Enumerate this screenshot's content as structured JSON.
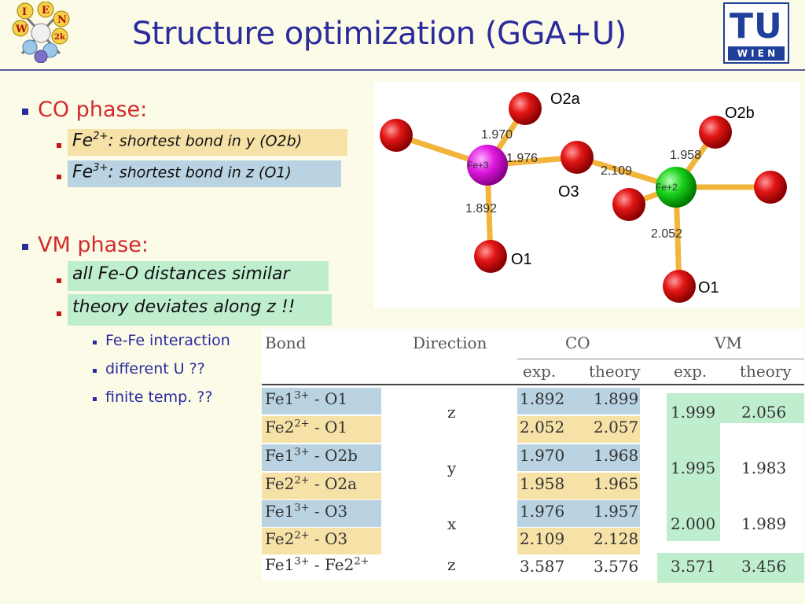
{
  "title": "Structure optimization (GGA+U)",
  "logo_left": {
    "letters": [
      "I",
      "E",
      "W",
      "N",
      "2k"
    ]
  },
  "logo_right": {
    "top": "TU",
    "bottom": "W I E N"
  },
  "bullets": {
    "co_phase": "CO phase:",
    "co_fe2_label": "Fe",
    "co_fe2_sup": "2+",
    "co_fe2_colon": ":",
    "co_fe2_text": "shortest bond in y (O2b)",
    "co_fe3_label": "Fe",
    "co_fe3_sup": "3+",
    "co_fe3_colon": ":",
    "co_fe3_text": "shortest bond in z (O1)",
    "vm_phase": "VM phase:",
    "vm_similar": "all Fe-O distances similar",
    "vm_deviates": "theory deviates  along z !!",
    "sub1": "Fe-Fe interaction",
    "sub2": "different U  ??",
    "sub3": "finite temp. ??"
  },
  "molecule": {
    "atoms": {
      "fe3": "Fe+3",
      "fe2": "Fe+2"
    },
    "labels": {
      "o2a": "O2a",
      "o2b": "O2b",
      "o3": "O3",
      "o1_left": "O1",
      "o1_right": "O1"
    },
    "bonds": {
      "b1970": "1.970",
      "b1976": "1.976",
      "b1892": "1.892",
      "b2109": "2.109",
      "b1958": "1.958",
      "b2052": "2.052"
    },
    "colors": {
      "oxygen": "#e31616",
      "fe3": "#e018e0",
      "fe2": "#18d018",
      "bond": "#f2b43a"
    }
  },
  "table": {
    "headers": {
      "bond": "Bond",
      "direction": "Direction",
      "co": "CO",
      "vm": "VM",
      "exp": "exp.",
      "theory": "theory"
    },
    "rows": [
      {
        "bond": "Fe1",
        "bsup": "3+",
        "tail": " - O1",
        "co_exp": "1.892",
        "co_th": "1.899"
      },
      {
        "bond": "Fe2",
        "bsup": "2+",
        "tail": " - O1",
        "co_exp": "2.052",
        "co_th": "2.057"
      },
      {
        "bond": "Fe1",
        "bsup": "3+",
        "tail": " - O2b",
        "co_exp": "1.970",
        "co_th": "1.968"
      },
      {
        "bond": "Fe2",
        "bsup": "2+",
        "tail": " - O2a",
        "co_exp": "1.958",
        "co_th": "1.965"
      },
      {
        "bond": "Fe1",
        "bsup": "3+",
        "tail": " - O3",
        "co_exp": "1.976",
        "co_th": "1.957"
      },
      {
        "bond": "Fe2",
        "bsup": "2+",
        "tail": " - O3",
        "co_exp": "2.109",
        "co_th": "2.128"
      },
      {
        "bond": "Fe1",
        "bsup": "3+",
        "tail": " - Fe2",
        "tsup": "2+",
        "co_exp": "3.587",
        "co_th": "3.576"
      }
    ],
    "directions": {
      "z1": "z",
      "y": "y",
      "x": "x",
      "z2": "z"
    },
    "vm": [
      {
        "exp": "1.999",
        "th": "2.056"
      },
      {
        "exp": "1.995",
        "th": "1.983"
      },
      {
        "exp": "2.000",
        "th": "1.989"
      },
      {
        "exp": "3.571",
        "th": "3.456"
      }
    ]
  }
}
